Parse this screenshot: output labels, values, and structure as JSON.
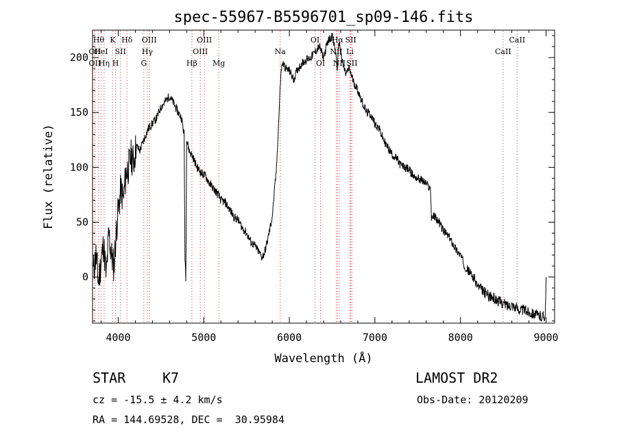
{
  "chart_data": {
    "type": "line",
    "title": "spec-55967-B5596701_sp09-146.fits",
    "xlabel": "Wavelength (Å)",
    "ylabel": "Flux (relative)",
    "xlim": [
      3700,
      9100
    ],
    "ylim": [
      -42,
      225
    ],
    "xticks": [
      4000,
      5000,
      6000,
      7000,
      8000,
      9000
    ],
    "yticks": [
      0,
      50,
      100,
      150,
      200
    ],
    "grid": false,
    "line_color": "#000000",
    "marker_color": "#cc3333",
    "series": [
      {
        "name": "",
        "x": [
          3710,
          3740,
          3770,
          3800,
          3830,
          3860,
          3890,
          3920,
          3950,
          3980,
          4000,
          4030,
          4060,
          4090,
          4120,
          4150,
          4180,
          4210,
          4250,
          4300,
          4350,
          4400,
          4450,
          4500,
          4550,
          4600,
          4650,
          4700,
          4740,
          4770,
          4780,
          4790,
          4800,
          4830,
          4870,
          4920,
          4970,
          5020,
          5070,
          5120,
          5170,
          5200,
          5250,
          5300,
          5350,
          5400,
          5450,
          5500,
          5550,
          5600,
          5650,
          5680,
          5710,
          5750,
          5800,
          5850,
          5880,
          5900,
          5920,
          5960,
          6000,
          6050,
          6100,
          6150,
          6200,
          6250,
          6300,
          6350,
          6400,
          6450,
          6500,
          6540,
          6560,
          6580,
          6620,
          6660,
          6700,
          6750,
          6800,
          6850,
          6900,
          6950,
          7000,
          7050,
          7100,
          7150,
          7200,
          7250,
          7300,
          7350,
          7400,
          7450,
          7500,
          7550,
          7600,
          7650,
          7660,
          7700,
          7750,
          7800,
          7850,
          7900,
          7950,
          8000,
          8050,
          8100,
          8150,
          8200,
          8250,
          8300,
          8350,
          8400,
          8450,
          8500,
          8550,
          8600,
          8650,
          8700,
          8750,
          8800,
          8850,
          8900,
          8950,
          8990,
          9000
        ],
        "y": [
          5,
          20,
          -5,
          15,
          30,
          0,
          40,
          20,
          10,
          45,
          60,
          80,
          70,
          95,
          100,
          110,
          105,
          120,
          115,
          125,
          135,
          140,
          145,
          155,
          160,
          165,
          158,
          150,
          145,
          130,
          20,
          0,
          125,
          115,
          110,
          100,
          95,
          92,
          85,
          80,
          75,
          70,
          68,
          62,
          55,
          52,
          45,
          40,
          32,
          28,
          22,
          18,
          22,
          35,
          55,
          100,
          150,
          185,
          195,
          190,
          188,
          180,
          190,
          195,
          198,
          200,
          205,
          210,
          200,
          215,
          220,
          205,
          190,
          215,
          195,
          185,
          190,
          178,
          170,
          160,
          150,
          148,
          140,
          135,
          125,
          118,
          112,
          108,
          102,
          100,
          98,
          92,
          90,
          88,
          85,
          80,
          55,
          55,
          50,
          42,
          38,
          32,
          25,
          20,
          10,
          5,
          0,
          -8,
          -12,
          -15,
          -18,
          -20,
          -22,
          -24,
          -26,
          -25,
          -28,
          -30,
          -30,
          -32,
          -33,
          -35,
          -36,
          -35,
          0
        ]
      }
    ],
    "lines": [
      {
        "wl": 3771,
        "label": "Hθ",
        "row": 0
      },
      {
        "wl": 3727,
        "label": "OII",
        "row": 1
      },
      {
        "wl": 3799,
        "label": "HeI",
        "row": 1
      },
      {
        "wl": 3727,
        "label": "OII",
        "row": 2
      },
      {
        "wl": 3835,
        "label": "Hη",
        "row": 2
      },
      {
        "wl": 3934,
        "label": "K",
        "row": 0
      },
      {
        "wl": 3969,
        "label": "H",
        "row": 2
      },
      {
        "wl": 4026,
        "label": "SII",
        "row": 1
      },
      {
        "wl": 4102,
        "label": "Hδ",
        "row": 0
      },
      {
        "wl": 4300,
        "label": "G",
        "row": 2
      },
      {
        "wl": 4340,
        "label": "Hγ",
        "row": 1
      },
      {
        "wl": 4363,
        "label": "OIII",
        "row": 0
      },
      {
        "wl": 4861,
        "label": "Hβ",
        "row": 2
      },
      {
        "wl": 4959,
        "label": "OIII",
        "row": 1
      },
      {
        "wl": 5007,
        "label": "OIII",
        "row": 0
      },
      {
        "wl": 5175,
        "label": "Mg",
        "row": 2
      },
      {
        "wl": 5893,
        "label": "Na",
        "row": 1
      },
      {
        "wl": 6300,
        "label": "OI",
        "row": 0
      },
      {
        "wl": 6364,
        "label": "OI",
        "row": 2
      },
      {
        "wl": 6548,
        "label": "NII",
        "row": 1
      },
      {
        "wl": 6563,
        "label": "Hα",
        "row": 0
      },
      {
        "wl": 6584,
        "label": "NII",
        "row": 2
      },
      {
        "wl": 6708,
        "label": "Li",
        "row": 1
      },
      {
        "wl": 6717,
        "label": "SII",
        "row": 0
      },
      {
        "wl": 6731,
        "label": "SII",
        "row": 2
      },
      {
        "wl": 8498,
        "label": "CaII",
        "row": 1
      },
      {
        "wl": 8662,
        "label": "CaII",
        "row": 0
      }
    ]
  },
  "info": {
    "class_label": "STAR",
    "subclass": "K7",
    "survey": "LAMOST DR2",
    "cz": "cz = -15.5 ± 4.2 km/s",
    "obs_date": "Obs-Date: 20120209",
    "radec": "RA = 144.69528, DEC =  30.95984"
  }
}
